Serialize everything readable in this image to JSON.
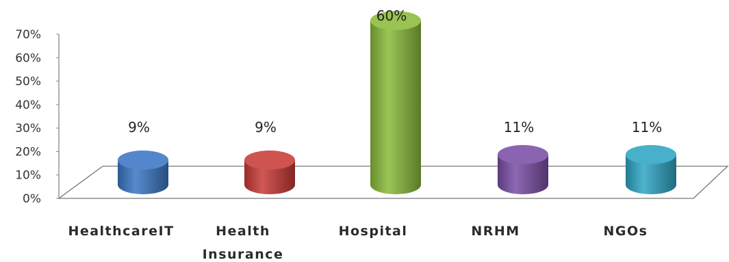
{
  "chart_data": {
    "type": "bar",
    "categories": [
      "HealthcareIT",
      "Health Insurance",
      "Hospital",
      "NRHM",
      "NGOs"
    ],
    "values": [
      9,
      9,
      60,
      11,
      11
    ],
    "data_labels": [
      "9%",
      "9%",
      "60%",
      "11%",
      "11%"
    ],
    "y_ticks": [
      "0%",
      "10%",
      "20%",
      "30%",
      "40%",
      "50%",
      "60%",
      "70%"
    ],
    "ylim": [
      0,
      70
    ],
    "colors": [
      "#3b76c4",
      "#c93b37",
      "#8bbb3a",
      "#7b4fa6",
      "#2fa5c4"
    ],
    "style": "3d-cylinder",
    "grid": false,
    "legend": "none"
  }
}
